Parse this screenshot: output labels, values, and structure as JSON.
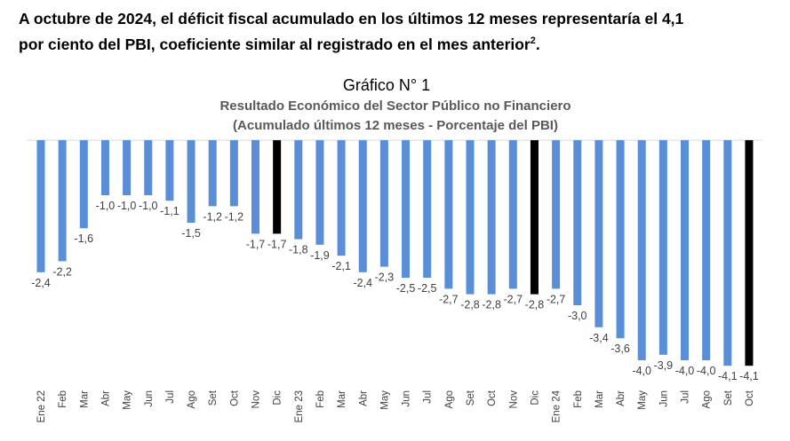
{
  "intro": {
    "line1": "A octubre de 2024, el déficit fiscal acumulado en los últimos 12 meses representaría el 4,1",
    "line2": "por ciento del PBI, coeficiente similar al registrado en el mes anterior",
    "footnote": "2",
    "end": "."
  },
  "chart_data": {
    "type": "bar",
    "title": "Gráfico N° 1",
    "subtitle1": "Resultado Económico del Sector Público no Financiero",
    "subtitle2": "(Acumulado últimos 12 meses - Porcentaje del PBI)",
    "categories": [
      "Ene 22",
      "Feb",
      "Mar",
      "Abr",
      "May",
      "Jun",
      "Jul",
      "Ago",
      "Set",
      "Oct",
      "Nov",
      "Dic",
      "Ene 23",
      "Feb",
      "Mar",
      "Abr",
      "May",
      "Jun",
      "Jul",
      "Ago",
      "Set",
      "Oct",
      "Nov",
      "Dic",
      "Ene 24",
      "Feb",
      "Mar",
      "Abr",
      "May",
      "Jun",
      "Jul",
      "Ago",
      "Set",
      "Oct"
    ],
    "values": [
      -2.4,
      -2.2,
      -1.6,
      -1.0,
      -1.0,
      -1.0,
      -1.1,
      -1.5,
      -1.2,
      -1.2,
      -1.7,
      -1.7,
      -1.8,
      -1.9,
      -2.1,
      -2.4,
      -2.3,
      -2.5,
      -2.5,
      -2.7,
      -2.8,
      -2.8,
      -2.7,
      -2.8,
      -2.7,
      -3.0,
      -3.4,
      -3.6,
      -4.0,
      -3.9,
      -4.0,
      -4.0,
      -4.1,
      -4.1
    ],
    "data_labels": [
      "-2,4",
      "-2,2",
      "-1,6",
      "-1,0",
      "-1,0",
      "-1,0",
      "-1,1",
      "-1,5",
      "-1,2",
      "-1,2",
      "-1,7",
      "-1,7",
      "-1,8",
      "-1,9",
      "-2,1",
      "-2,4",
      "-2,3",
      "-2,5",
      "-2,5",
      "-2,7",
      "-2,8",
      "-2,8",
      "-2,7",
      "-2,8",
      "-2,7",
      "-3,0",
      "-3,4",
      "-3,6",
      "-4,0",
      "-3,9",
      "-4,0",
      "-4,0",
      "-4,1",
      "-4,1"
    ],
    "highlighted": [
      "Dic",
      "Dic",
      "Oct"
    ],
    "colors": {
      "default": "#5A8ED6",
      "highlight": "#000000",
      "axis": "#d9d9d9"
    },
    "grid": false,
    "legend": "none"
  }
}
